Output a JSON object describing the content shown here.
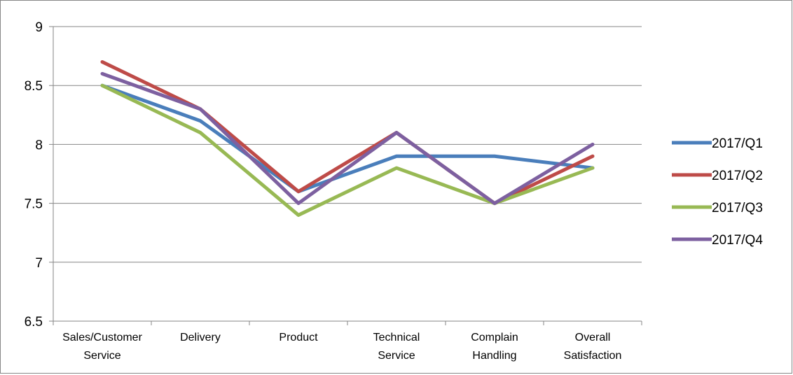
{
  "chart_data": {
    "type": "line",
    "title": "",
    "xlabel": "",
    "ylabel": "",
    "ylim": [
      6.5,
      9
    ],
    "yticks": [
      "6.5",
      "7",
      "7.5",
      "8",
      "8.5",
      "9"
    ],
    "ytick_values": [
      6.5,
      7,
      7.5,
      8,
      8.5,
      9
    ],
    "categories": [
      [
        "Sales/Customer",
        "Service"
      ],
      [
        "Delivery"
      ],
      [
        "Product"
      ],
      [
        "Technical",
        "Service"
      ],
      [
        "Complain",
        "Handling"
      ],
      [
        "Overall",
        "Satisfaction"
      ]
    ],
    "grid": true,
    "legend_position": "right",
    "series": [
      {
        "name": "2017/Q1",
        "color": "#4A7EBB",
        "values": [
          8.5,
          8.2,
          7.6,
          7.9,
          7.9,
          7.8
        ]
      },
      {
        "name": "2017/Q2",
        "color": "#BE4B48",
        "values": [
          8.7,
          8.3,
          7.6,
          8.1,
          7.5,
          7.9
        ]
      },
      {
        "name": "2017/Q3",
        "color": "#98B954",
        "values": [
          8.5,
          8.1,
          7.4,
          7.8,
          7.5,
          7.8
        ]
      },
      {
        "name": "2017/Q4",
        "color": "#7D60A0",
        "values": [
          8.6,
          8.3,
          7.5,
          8.1,
          7.5,
          8.0
        ]
      }
    ]
  }
}
